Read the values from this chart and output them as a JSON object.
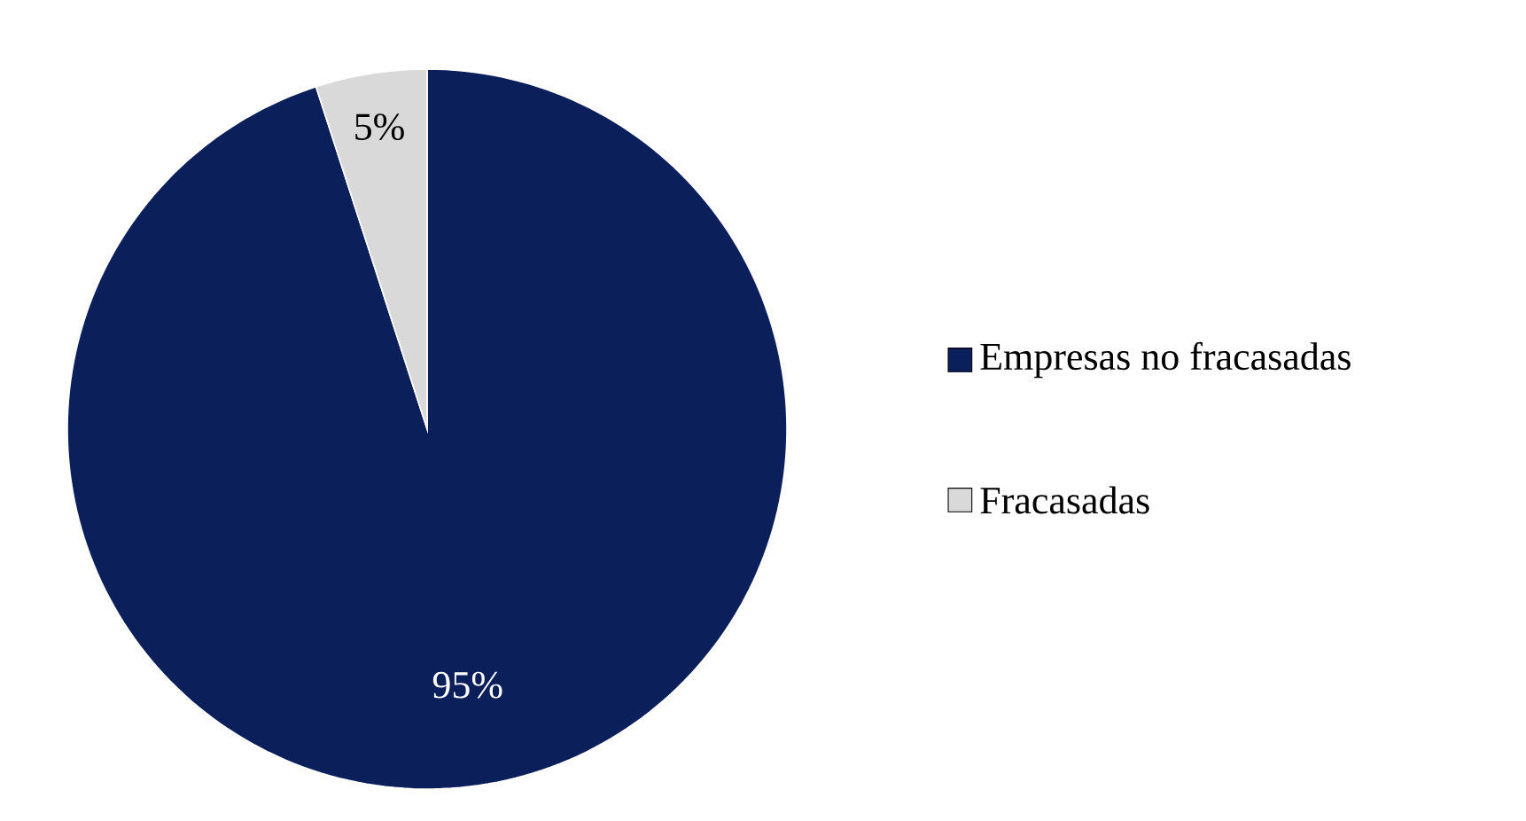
{
  "chart_data": {
    "type": "pie",
    "categories": [
      "Empresas no fracasadas",
      "Fracasadas"
    ],
    "values": [
      95,
      5
    ],
    "colors": [
      "#0b1f5b",
      "#d9d9d9"
    ],
    "value_labels": [
      "95%",
      "5%"
    ],
    "legend": "right"
  }
}
